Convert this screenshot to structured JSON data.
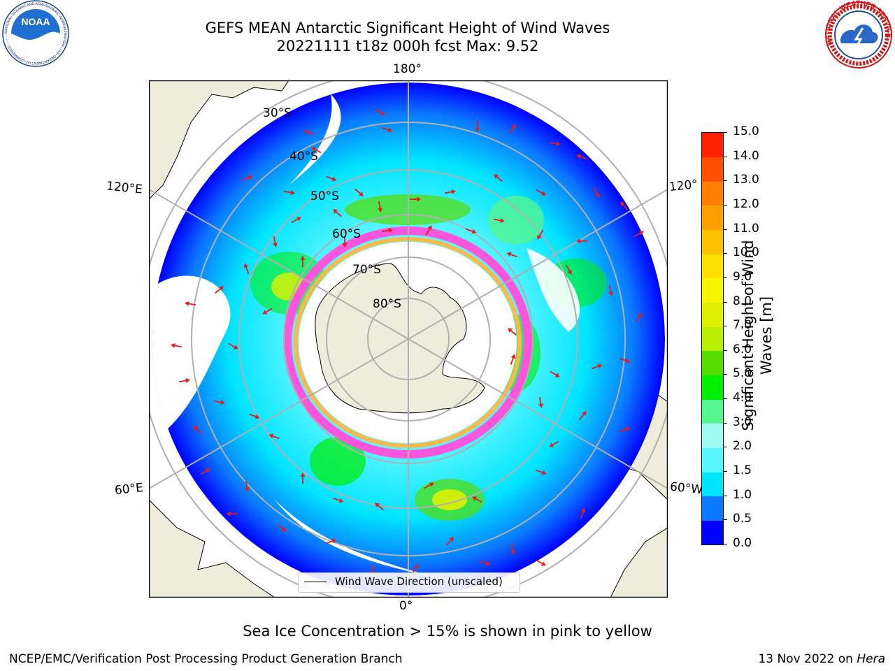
{
  "header": {
    "title_line1": "GEFS MEAN Antarctic Significant Height of Wind Waves",
    "title_line2": "20221111 t18z 000h fcst   Max: 9.52"
  },
  "logos": {
    "left": {
      "text": "NOAA",
      "ring_text": "NATIONAL OCEANIC AND ATMOSPHERIC ADMINISTRATION · U.S. DEPARTMENT OF COMMERCE"
    },
    "right": {
      "ring_text": "NATIONAL WEATHER SERVICE"
    }
  },
  "map": {
    "lon_labels": {
      "top": "180°",
      "bottom": "0°",
      "upper_left": "120°E",
      "upper_right": "120°",
      "lower_left": "60°E",
      "lower_right": "60°W"
    },
    "lat_labels": [
      "30°S",
      "40°S",
      "50°S",
      "60°S",
      "70°S",
      "80°S"
    ],
    "legend": "Wind Wave Direction (unscaled)",
    "colors": {
      "land": "#eeecdb",
      "ice_pink": "#ff55dd",
      "ice_yellow": "#ffb84a",
      "vector": "#e81a1a",
      "grid": "#b0b0b0"
    }
  },
  "colorbar": {
    "label_line1": "Significant Height of Wind",
    "label_line2": "Waves [m]",
    "ticks": [
      "0.0",
      "0.5",
      "1.0",
      "1.5",
      "2.0",
      "3.0",
      "4.0",
      "5.0",
      "6.0",
      "7.0",
      "8.0",
      "9.0",
      "10.0",
      "11.0",
      "12.0",
      "13.0",
      "14.0",
      "15.0"
    ],
    "colors": [
      "#0000ff",
      "#0a78ff",
      "#00e4ff",
      "#56f5ff",
      "#9efcf3",
      "#55f58f",
      "#00ee00",
      "#55dd00",
      "#b8ee00",
      "#ddf000",
      "#f5f500",
      "#ffe000",
      "#ffc000",
      "#ffa000",
      "#ff8000",
      "#ff5000",
      "#ff2000"
    ]
  },
  "footer": {
    "note": "Sea Ice Concentration > 15% is shown in pink to yellow",
    "branch": "NCEP/EMC/Verification Post Processing Product Generation Branch",
    "date": "13 Nov 2022 on ",
    "machine": "Hera"
  }
}
